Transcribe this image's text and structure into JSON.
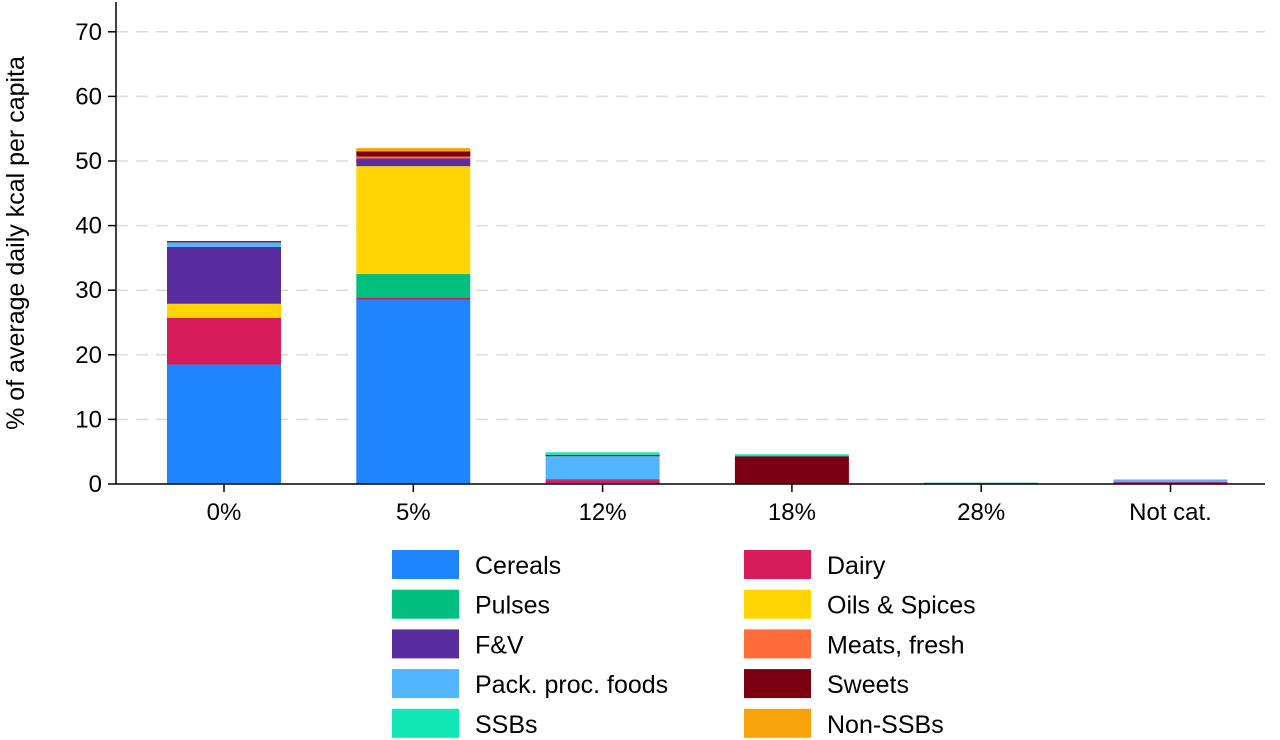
{
  "chart_data": {
    "type": "bar",
    "stacked": true,
    "title": "",
    "xlabel": "",
    "ylabel": "% of average daily kcal per capita",
    "ylim": [
      0,
      74
    ],
    "yticks": [
      0,
      10,
      20,
      30,
      40,
      50,
      60,
      70
    ],
    "grid": "horizontal dashed",
    "legend_position": "bottom, two columns",
    "categories": [
      "0%",
      "5%",
      "12%",
      "18%",
      "28%",
      "Not cat."
    ],
    "series": [
      {
        "name": "Cereals",
        "color": "#1e85ff",
        "values": [
          18.5,
          28.5,
          0,
          0,
          0,
          0
        ]
      },
      {
        "name": "Dairy",
        "color": "#d81b5a",
        "values": [
          7.2,
          0.4,
          0.6,
          0,
          0,
          0.3
        ]
      },
      {
        "name": "Pulses",
        "color": "#00bf7f",
        "values": [
          0,
          3.6,
          0,
          0,
          0.2,
          0
        ]
      },
      {
        "name": "Oils & Spices",
        "color": "#ffd400",
        "values": [
          2.2,
          16.7,
          0,
          0,
          0,
          0
        ]
      },
      {
        "name": "F&V",
        "color": "#5a2d9e",
        "values": [
          8.8,
          1.2,
          0.1,
          0,
          0,
          0
        ]
      },
      {
        "name": "Meats, fresh",
        "color": "#ff6c3a",
        "values": [
          0,
          0.3,
          0,
          0,
          0,
          0
        ]
      },
      {
        "name": "Pack. proc. foods",
        "color": "#52b5ff",
        "values": [
          0.7,
          0,
          3.6,
          0.1,
          0,
          0.4
        ]
      },
      {
        "name": "Sweets",
        "color": "#7a0012",
        "values": [
          0.2,
          0.8,
          0.2,
          4.2,
          0,
          0
        ]
      },
      {
        "name": "SSBs",
        "color": "#11e8b5",
        "values": [
          0,
          0,
          0.4,
          0.3,
          0,
          0
        ]
      },
      {
        "name": "Non-SSBs",
        "color": "#f9a30a",
        "values": [
          0,
          0.5,
          0,
          0,
          0,
          0
        ]
      }
    ],
    "legend_order": [
      "Cereals",
      "Dairy",
      "Pulses",
      "Oils & Spices",
      "F&V",
      "Meats, fresh",
      "Pack. proc. foods",
      "Sweets",
      "SSBs",
      "Non-SSBs"
    ]
  }
}
